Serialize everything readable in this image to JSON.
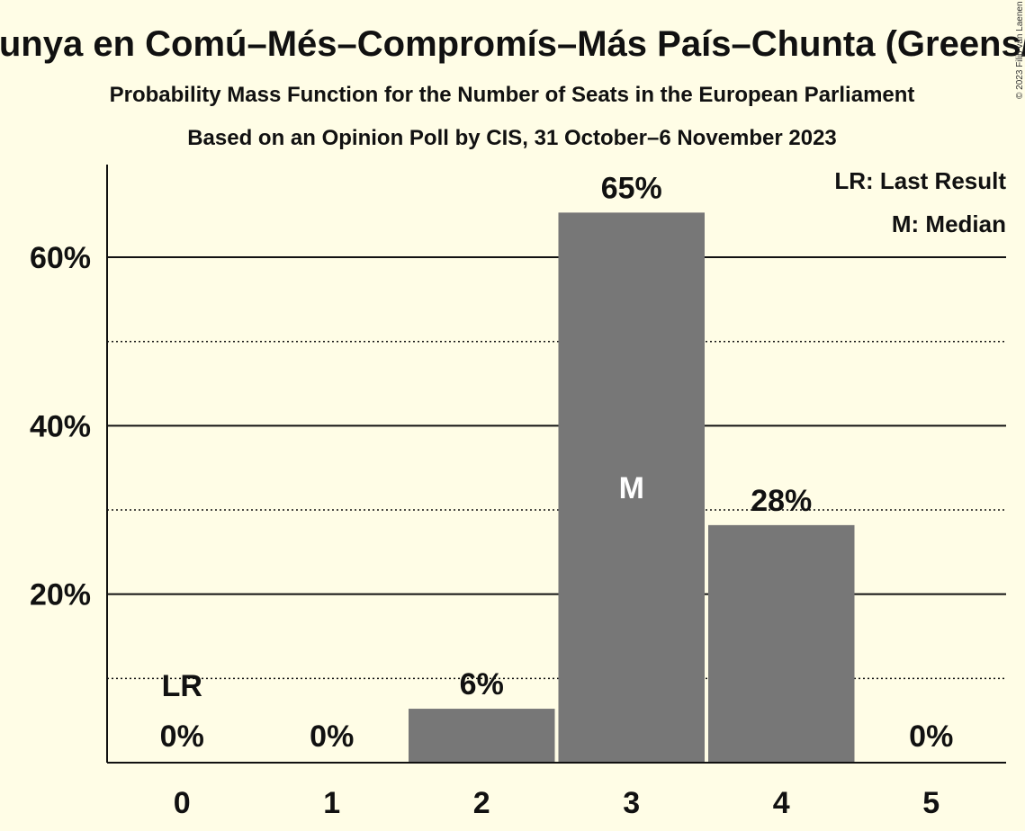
{
  "chart_data": {
    "type": "bar",
    "title": "Catalunya en Comú–Més–Compromís–Más País–Chunta (Greens/EFA)",
    "subtitle": "Probability Mass Function for the Number of Seats in the European Parliament",
    "subtitle2": "Based on an Opinion Poll by CIS, 31 October–6 November 2023",
    "categories": [
      "0",
      "1",
      "2",
      "3",
      "4",
      "5"
    ],
    "values": [
      0,
      0,
      6.4,
      65.3,
      28.2,
      0
    ],
    "value_labels": [
      "0%",
      "0%",
      "6%",
      "65%",
      "28%",
      "0%"
    ],
    "ylim": [
      0,
      71
    ],
    "y_ticks": [
      20,
      40,
      60
    ],
    "y_tick_labels": [
      "20%",
      "40%",
      "60%"
    ],
    "minor_grid": [
      10,
      30,
      50
    ],
    "bar_color": "#777777",
    "last_result": {
      "index": 0,
      "label": "LR"
    },
    "median": {
      "index": 3,
      "label": "M"
    },
    "legend": [
      "LR: Last Result",
      "M: Median"
    ],
    "legend_position": "top-right",
    "copyright": "© 2023 Filip van Laenen"
  }
}
